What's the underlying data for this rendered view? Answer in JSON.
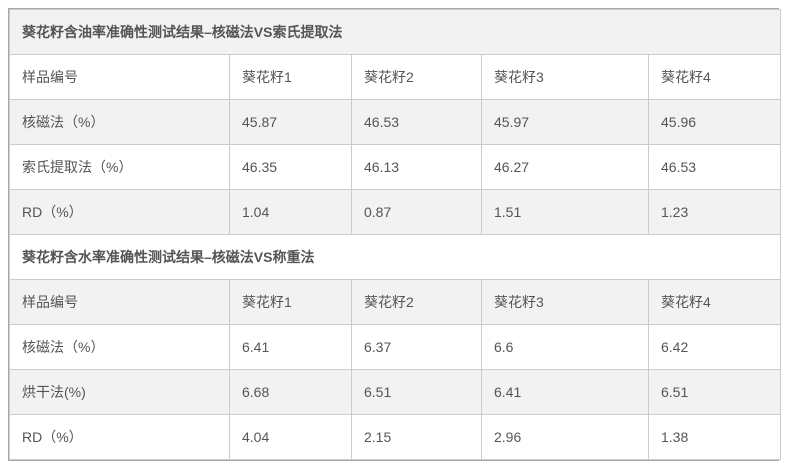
{
  "colors": {
    "stripe_bg": "#f2f2f2",
    "row_bg": "#ffffff",
    "border_outer": "#a8a8a8",
    "border_inner": "#cccccc",
    "body_text": "#555555",
    "title_text": "#333333"
  },
  "tables": [
    {
      "title": "葵花籽含油率准确性测试结果–核磁法VS索氏提取法",
      "header": [
        "样品编号",
        "葵花籽1",
        "葵花籽2",
        "葵花籽3",
        "葵花籽4"
      ],
      "rows": [
        {
          "label": "核磁法（%）",
          "values": [
            "45.87",
            "46.53",
            "45.97",
            "45.96"
          ]
        },
        {
          "label": "索氏提取法（%）",
          "values": [
            "46.35",
            "46.13",
            "46.27",
            "46.53"
          ]
        },
        {
          "label": "RD（%）",
          "values": [
            "1.04",
            "0.87",
            "1.51",
            "1.23"
          ]
        }
      ]
    },
    {
      "title": "葵花籽含水率准确性测试结果–核磁法VS称重法",
      "header": [
        "样品编号",
        "葵花籽1",
        "葵花籽2",
        "葵花籽3",
        "葵花籽4"
      ],
      "rows": [
        {
          "label": "核磁法（%）",
          "values": [
            "6.41",
            "6.37",
            "6.6",
            "6.42"
          ]
        },
        {
          "label": "烘干法(%)",
          "values": [
            "6.68",
            "6.51",
            "6.41",
            "6.51"
          ]
        },
        {
          "label": "RD（%）",
          "values": [
            "4.04",
            "2.15",
            "2.96",
            "1.38"
          ]
        }
      ]
    }
  ],
  "chart_data": [
    {
      "type": "table",
      "title": "葵花籽含油率准确性测试结果–核磁法VS索氏提取法",
      "categories": [
        "葵花籽1",
        "葵花籽2",
        "葵花籽3",
        "葵花籽4"
      ],
      "series": [
        {
          "name": "核磁法（%）",
          "values": [
            45.87,
            46.53,
            45.97,
            45.96
          ]
        },
        {
          "name": "索氏提取法（%）",
          "values": [
            46.35,
            46.13,
            46.27,
            46.53
          ]
        },
        {
          "name": "RD（%）",
          "values": [
            1.04,
            0.87,
            1.51,
            1.23
          ]
        }
      ]
    },
    {
      "type": "table",
      "title": "葵花籽含水率准确性测试结果–核磁法VS称重法",
      "categories": [
        "葵花籽1",
        "葵花籽2",
        "葵花籽3",
        "葵花籽4"
      ],
      "series": [
        {
          "name": "核磁法（%）",
          "values": [
            6.41,
            6.37,
            6.6,
            6.42
          ]
        },
        {
          "name": "烘干法(%)",
          "values": [
            6.68,
            6.51,
            6.41,
            6.51
          ]
        },
        {
          "name": "RD（%）",
          "values": [
            4.04,
            2.15,
            2.96,
            1.38
          ]
        }
      ]
    }
  ]
}
